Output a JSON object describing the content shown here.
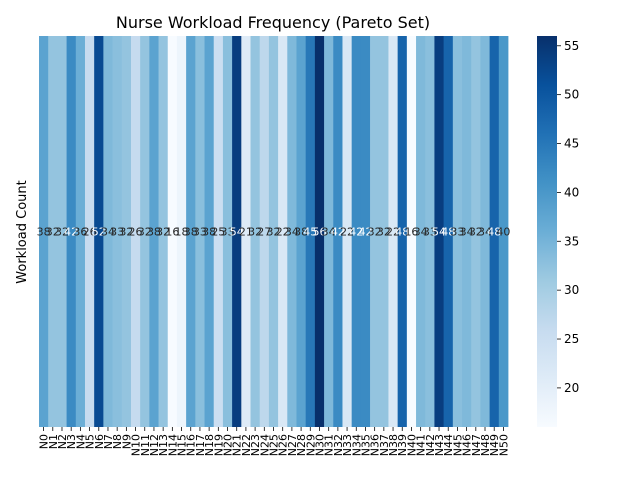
{
  "chart_data": {
    "type": "heatmap",
    "title": "Nurse Workload Frequency (Pareto Set)",
    "xlabel": "",
    "ylabel": "Workload Count",
    "categories": [
      "N0",
      "N1",
      "N2",
      "N3",
      "N4",
      "N5",
      "N6",
      "N7",
      "N8",
      "N9",
      "N10",
      "N11",
      "N12",
      "N13",
      "N14",
      "N15",
      "N16",
      "N17",
      "N18",
      "N19",
      "N20",
      "N21",
      "N22",
      "N23",
      "N24",
      "N25",
      "N26",
      "N27",
      "N28",
      "N29",
      "N30",
      "N31",
      "N32",
      "N33",
      "N34",
      "N35",
      "N36",
      "N37",
      "N38",
      "N39",
      "N40",
      "N41",
      "N42",
      "N43",
      "N44",
      "N45",
      "N46",
      "N47",
      "N48",
      "N49",
      "N50"
    ],
    "values": [
      38,
      32,
      32,
      42,
      36,
      26,
      52,
      34,
      33,
      32,
      26,
      32,
      38,
      32,
      16,
      18,
      38,
      33,
      38,
      25,
      33,
      54,
      21,
      32,
      27,
      32,
      22,
      34,
      38,
      45,
      56,
      34,
      42,
      22,
      42,
      42,
      32,
      32,
      22,
      48,
      16,
      34,
      33,
      54,
      48,
      33,
      34,
      32,
      34,
      48,
      40
    ],
    "colorbar": {
      "min": 16,
      "max": 56,
      "ticks": [
        20,
        25,
        30,
        35,
        40,
        45,
        50,
        55
      ]
    },
    "colormap": "Blues",
    "grid": false,
    "legend": "colorbar-right"
  }
}
